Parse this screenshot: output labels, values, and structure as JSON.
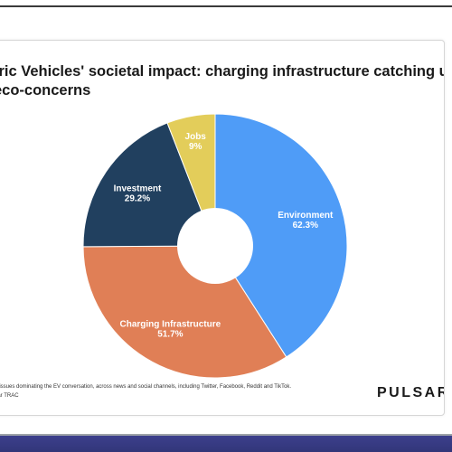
{
  "page": {
    "title_line1": "tric Vehicles' societal impact: charging infrastructure catching up",
    "title_line2": "eco-concerns",
    "footnote_line1": "al issues dominating the EV conversation, across news and social channels, including Twitter, Facebook, Reddit and TikTok.",
    "footnote_line2": "lsar TRAC",
    "logo_text": "PULSAR×"
  },
  "chart_data": {
    "type": "pie",
    "style": "donut",
    "title": "tric Vehicles' societal impact: charging infrastructure catching up eco-concerns",
    "legend": "none",
    "series": [
      {
        "name": "",
        "slices": [
          {
            "label": "Environment",
            "value_label": "62.3%",
            "value": 62.3,
            "color": "#4f9cf7"
          },
          {
            "label": "Charging Infrastructure",
            "value_label": "51.7%",
            "value": 51.7,
            "color": "#e07f56"
          },
          {
            "label": "Investment",
            "value_label": "29.2%",
            "value": 29.2,
            "color": "#21405f"
          },
          {
            "label": "Jobs",
            "value_label": "9%",
            "value": 9,
            "color": "#e3cd5a"
          }
        ]
      }
    ]
  },
  "colors": {
    "border": "#d6d6d6",
    "text": "#1a1a1a",
    "band": "#3c3f8c"
  }
}
